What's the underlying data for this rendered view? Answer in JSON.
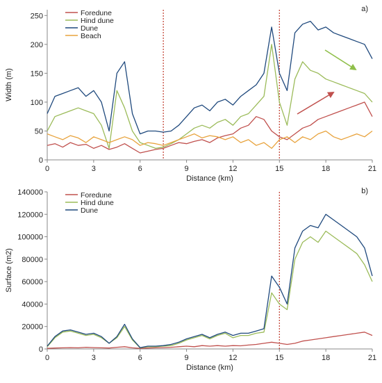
{
  "chart_data": [
    {
      "panel_label": "a)",
      "type": "line",
      "xlabel": "Distance (km)",
      "ylabel": "Width (m)",
      "xlim": [
        0,
        21
      ],
      "ylim": [
        0,
        260
      ],
      "x_ticks": [
        0,
        3,
        6,
        9,
        12,
        15,
        18,
        21
      ],
      "y_ticks": [
        0,
        50,
        100,
        150,
        200,
        250
      ],
      "grid": false,
      "legend_position": "top-left",
      "vertical_reference_lines_km": [
        7.5,
        15
      ],
      "series": [
        {
          "name": "Foredune",
          "color": "#c0504d",
          "x": [
            0,
            0.5,
            1,
            1.5,
            2,
            2.5,
            3,
            3.5,
            4,
            4.5,
            5,
            5.5,
            6,
            6.5,
            7,
            7.5,
            8,
            8.5,
            9,
            9.5,
            10,
            10.5,
            11,
            11.5,
            12,
            12.5,
            13,
            13.5,
            14,
            14.5,
            15,
            15.5,
            16,
            16.5,
            17,
            17.5,
            18,
            18.5,
            19,
            19.5,
            20,
            20.5,
            21
          ],
          "y": [
            25,
            28,
            22,
            30,
            25,
            27,
            20,
            25,
            18,
            22,
            28,
            20,
            12,
            15,
            18,
            20,
            25,
            30,
            28,
            32,
            35,
            30,
            38,
            42,
            45,
            55,
            60,
            75,
            70,
            50,
            40,
            35,
            45,
            55,
            60,
            70,
            75,
            80,
            85,
            90,
            95,
            100,
            75
          ]
        },
        {
          "name": "Hind dune",
          "color": "#9bbb59",
          "x": [
            0,
            0.5,
            1,
            1.5,
            2,
            2.5,
            3,
            3.5,
            4,
            4.5,
            5,
            5.5,
            6,
            6.5,
            7,
            7.5,
            8,
            8.5,
            9,
            9.5,
            10,
            10.5,
            11,
            11.5,
            12,
            12.5,
            13,
            13.5,
            14,
            14.5,
            15,
            15.5,
            16,
            16.5,
            17,
            17.5,
            18,
            18.5,
            19,
            19.5,
            20,
            20.5,
            21
          ],
          "y": [
            50,
            75,
            80,
            85,
            90,
            85,
            80,
            60,
            20,
            120,
            90,
            50,
            30,
            25,
            20,
            22,
            28,
            35,
            45,
            55,
            60,
            55,
            65,
            70,
            60,
            75,
            80,
            95,
            110,
            200,
            100,
            60,
            140,
            170,
            155,
            150,
            140,
            135,
            130,
            125,
            120,
            115,
            100
          ]
        },
        {
          "name": "Dune",
          "color": "#1f497d",
          "x": [
            0,
            0.5,
            1,
            1.5,
            2,
            2.5,
            3,
            3.5,
            4,
            4.5,
            5,
            5.5,
            6,
            6.5,
            7,
            7.5,
            8,
            8.5,
            9,
            9.5,
            10,
            10.5,
            11,
            11.5,
            12,
            12.5,
            13,
            13.5,
            14,
            14.5,
            15,
            15.5,
            16,
            16.5,
            17,
            17.5,
            18,
            18.5,
            19,
            19.5,
            20,
            20.5,
            21
          ],
          "y": [
            80,
            110,
            115,
            120,
            125,
            110,
            120,
            100,
            50,
            150,
            170,
            80,
            45,
            50,
            50,
            48,
            50,
            60,
            75,
            90,
            95,
            85,
            100,
            105,
            95,
            110,
            120,
            130,
            150,
            230,
            150,
            120,
            220,
            235,
            240,
            225,
            230,
            220,
            215,
            210,
            205,
            200,
            175
          ]
        },
        {
          "name": "Beach",
          "color": "#e8a33d",
          "x": [
            0,
            0.5,
            1,
            1.5,
            2,
            2.5,
            3,
            3.5,
            4,
            4.5,
            5,
            5.5,
            6,
            6.5,
            7,
            7.5,
            8,
            8.5,
            9,
            9.5,
            10,
            10.5,
            11,
            11.5,
            12,
            12.5,
            13,
            13.5,
            14,
            14.5,
            15,
            15.5,
            16,
            16.5,
            17,
            17.5,
            18,
            18.5,
            19,
            19.5,
            20,
            20.5,
            21
          ],
          "y": [
            45,
            40,
            35,
            42,
            38,
            30,
            40,
            35,
            30,
            35,
            40,
            35,
            25,
            30,
            28,
            25,
            30,
            35,
            40,
            45,
            38,
            42,
            40,
            35,
            40,
            30,
            35,
            25,
            30,
            20,
            35,
            40,
            30,
            40,
            35,
            45,
            50,
            40,
            35,
            40,
            45,
            40,
            50
          ]
        }
      ]
    },
    {
      "panel_label": "b)",
      "type": "line",
      "xlabel": "Distance (km)",
      "ylabel": "Surface (m2)",
      "xlim": [
        0,
        21
      ],
      "ylim": [
        0,
        140000
      ],
      "x_ticks": [
        0,
        3,
        6,
        9,
        12,
        15,
        18,
        21
      ],
      "y_ticks": [
        0,
        20000,
        40000,
        60000,
        80000,
        100000,
        120000,
        140000
      ],
      "grid": false,
      "legend_position": "top-left",
      "vertical_reference_lines_km": [
        15
      ],
      "series": [
        {
          "name": "Foredune",
          "color": "#c0504d",
          "x": [
            0,
            0.5,
            1,
            1.5,
            2,
            2.5,
            3,
            3.5,
            4,
            4.5,
            5,
            5.5,
            6,
            6.5,
            7,
            7.5,
            8,
            8.5,
            9,
            9.5,
            10,
            10.5,
            11,
            11.5,
            12,
            12.5,
            13,
            13.5,
            14,
            14.5,
            15,
            15.5,
            16,
            16.5,
            17,
            17.5,
            18,
            18.5,
            19,
            19.5,
            20,
            20.5,
            21
          ],
          "y": [
            500,
            800,
            1000,
            1200,
            1000,
            1500,
            1200,
            1000,
            800,
            1500,
            2000,
            1000,
            500,
            800,
            1000,
            1200,
            1500,
            2000,
            2500,
            2000,
            3000,
            2500,
            3000,
            2500,
            3000,
            2800,
            3500,
            4000,
            5000,
            6000,
            5000,
            4000,
            5000,
            7000,
            8000,
            9000,
            10000,
            11000,
            12000,
            13000,
            14000,
            15000,
            12000
          ]
        },
        {
          "name": "Hind dune",
          "color": "#9bbb59",
          "x": [
            0,
            0.5,
            1,
            1.5,
            2,
            2.5,
            3,
            3.5,
            4,
            4.5,
            5,
            5.5,
            6,
            6.5,
            7,
            7.5,
            8,
            8.5,
            9,
            9.5,
            10,
            10.5,
            11,
            11.5,
            12,
            12.5,
            13,
            13.5,
            14,
            14.5,
            15,
            15.5,
            16,
            16.5,
            17,
            17.5,
            18,
            18.5,
            19,
            19.5,
            20,
            20.5,
            21
          ],
          "y": [
            2000,
            10000,
            15000,
            16000,
            14000,
            12000,
            13000,
            10000,
            5000,
            10000,
            20000,
            8000,
            1000,
            2000,
            2000,
            2500,
            3000,
            5000,
            8000,
            10000,
            12000,
            9000,
            12000,
            14000,
            10000,
            12000,
            12000,
            14000,
            15000,
            50000,
            40000,
            35000,
            80000,
            95000,
            100000,
            95000,
            105000,
            100000,
            95000,
            90000,
            85000,
            75000,
            60000
          ]
        },
        {
          "name": "Dune",
          "color": "#1f497d",
          "x": [
            0,
            0.5,
            1,
            1.5,
            2,
            2.5,
            3,
            3.5,
            4,
            4.5,
            5,
            5.5,
            6,
            6.5,
            7,
            7.5,
            8,
            8.5,
            9,
            9.5,
            10,
            10.5,
            11,
            11.5,
            12,
            12.5,
            13,
            13.5,
            14,
            14.5,
            15,
            15.5,
            16,
            16.5,
            17,
            17.5,
            18,
            18.5,
            19,
            19.5,
            20,
            20.5,
            21
          ],
          "y": [
            2500,
            11000,
            16000,
            17000,
            15000,
            13000,
            14000,
            11000,
            5000,
            11000,
            22000,
            9000,
            1200,
            2500,
            2500,
            3000,
            4000,
            6000,
            9000,
            11000,
            13000,
            10000,
            13000,
            15000,
            12000,
            14000,
            14000,
            16000,
            18000,
            65000,
            55000,
            40000,
            90000,
            105000,
            110000,
            108000,
            120000,
            115000,
            110000,
            105000,
            100000,
            90000,
            65000
          ]
        }
      ]
    }
  ]
}
